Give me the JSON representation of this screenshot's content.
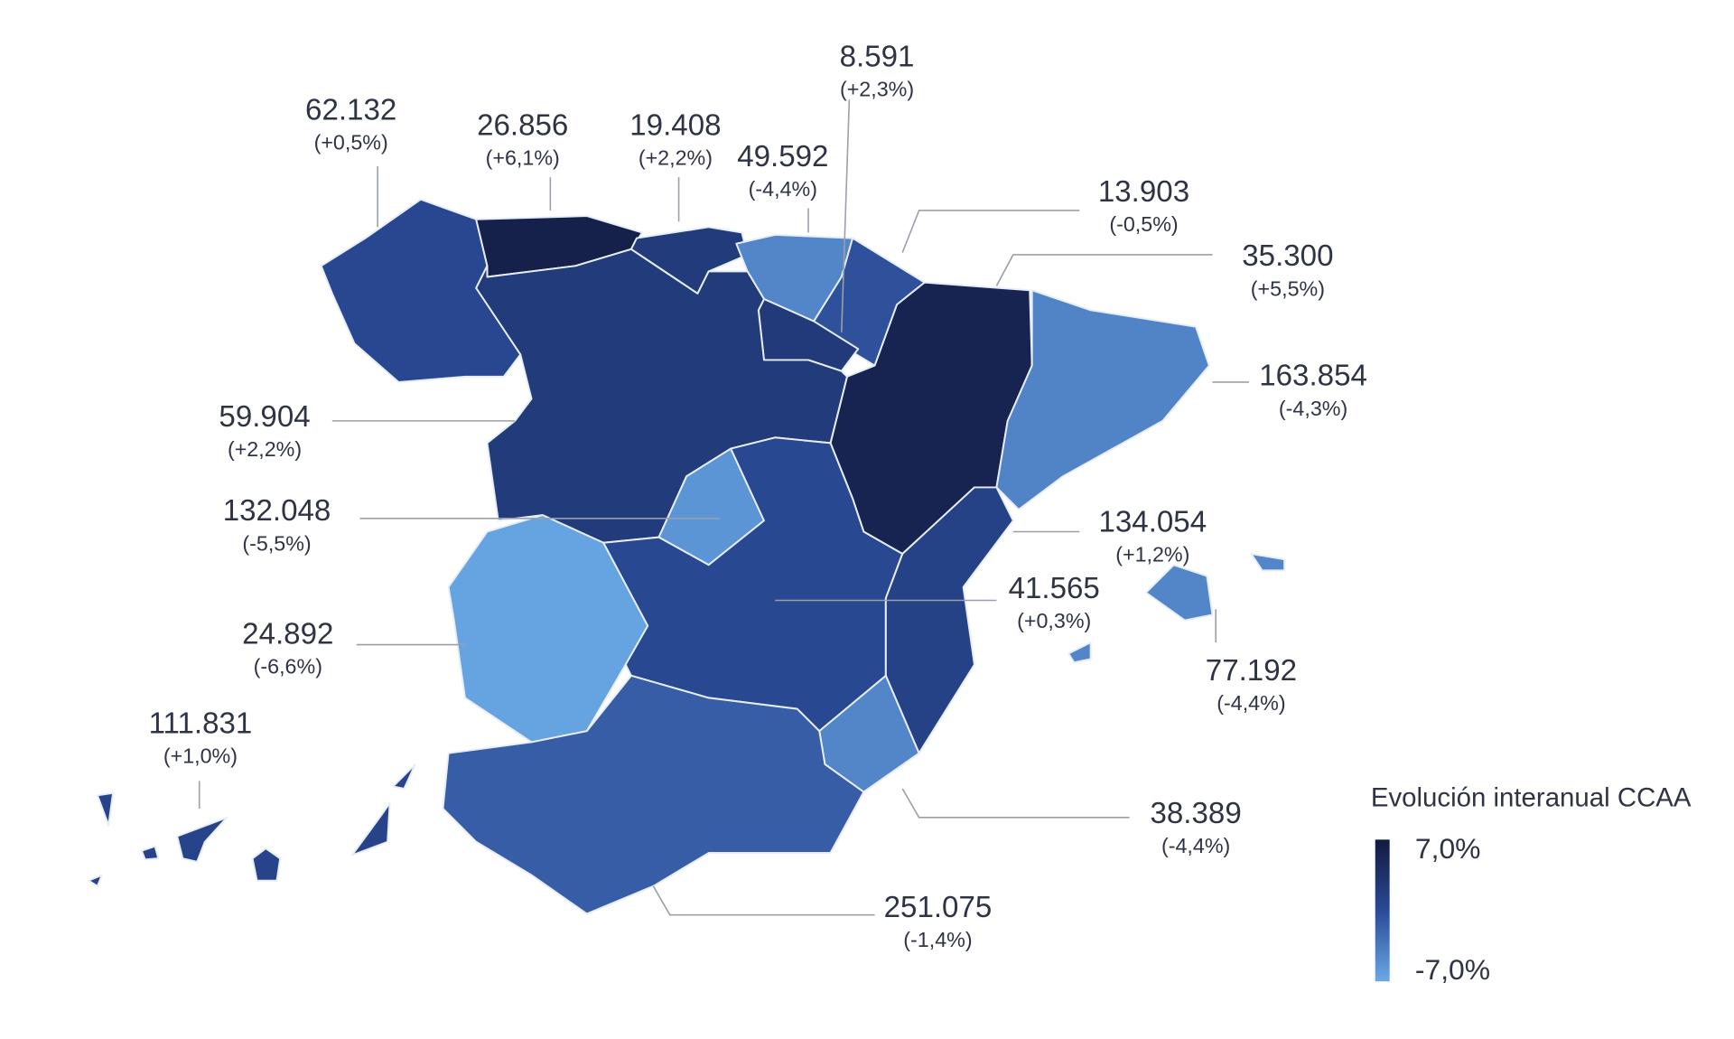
{
  "map": {
    "regions": [
      {
        "value": 62132,
        "value_label": "62.132",
        "change": 0.5,
        "change_label": "(+0,5%)"
      },
      {
        "value": 26856,
        "value_label": "26.856",
        "change": 6.1,
        "change_label": "(+6,1%)"
      },
      {
        "value": 19408,
        "value_label": "19.408",
        "change": 2.2,
        "change_label": "(+2,2%)"
      },
      {
        "value": 49592,
        "value_label": "49.592",
        "change": -4.4,
        "change_label": "(-4,4%)"
      },
      {
        "value": 13903,
        "value_label": "13.903",
        "change": -0.5,
        "change_label": "(-0,5%)"
      },
      {
        "value": 8591,
        "value_label": "8.591",
        "change": 2.3,
        "change_label": "(+2,3%)"
      },
      {
        "value": 35300,
        "value_label": "35.300",
        "change": 5.5,
        "change_label": "(+5,5%)"
      },
      {
        "value": 163854,
        "value_label": "163.854",
        "change": -4.3,
        "change_label": "(-4,3%)"
      },
      {
        "value": 59904,
        "value_label": "59.904",
        "change": 2.2,
        "change_label": "(+2,2%)"
      },
      {
        "value": 132048,
        "value_label": "132.048",
        "change": -5.5,
        "change_label": "(-5,5%)"
      },
      {
        "value": 24892,
        "value_label": "24.892",
        "change": -6.6,
        "change_label": "(-6,6%)"
      },
      {
        "value": 41565,
        "value_label": "41.565",
        "change": 0.3,
        "change_label": "(+0,3%)"
      },
      {
        "value": 134054,
        "value_label": "134.054",
        "change": 1.2,
        "change_label": "(+1,2%)"
      },
      {
        "value": 38389,
        "value_label": "38.389",
        "change": -4.4,
        "change_label": "(-4,4%)"
      },
      {
        "value": 251075,
        "value_label": "251.075",
        "change": -1.4,
        "change_label": "(-1,4%)"
      },
      {
        "value": 77192,
        "value_label": "77.192",
        "change": -4.4,
        "change_label": "(-4,4%)"
      },
      {
        "value": 111831,
        "value_label": "111.831",
        "change": 1.0,
        "change_label": "(+1,0%)"
      }
    ],
    "legend": {
      "title": "Evolución interanual CCAA",
      "max": {
        "value": 7,
        "label": "7,0%"
      },
      "min": {
        "value": -7,
        "label": "-7,0%"
      },
      "colors": [
        "#121a40",
        "#2a4a96",
        "#69a9e6"
      ]
    }
  }
}
